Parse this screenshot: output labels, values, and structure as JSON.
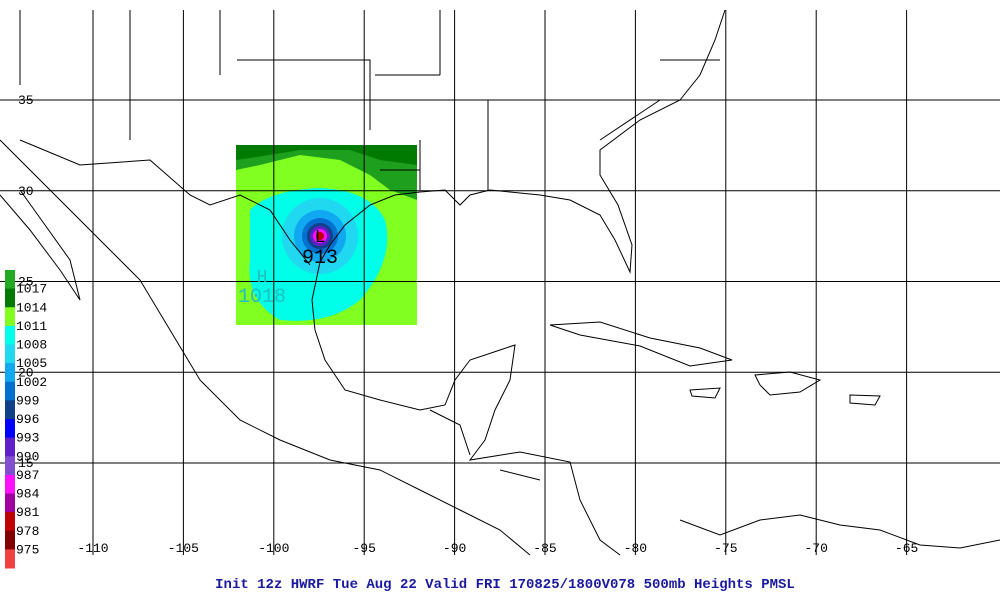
{
  "map": {
    "lon_ticks": [
      -110,
      -105,
      -100,
      -95,
      -90,
      -85,
      -80,
      -75,
      -70,
      -65
    ],
    "lat_ticks": [
      35,
      30,
      25,
      20,
      15
    ],
    "colorbar_labels": [
      "1017",
      "1014",
      "1011",
      "1008",
      "1005",
      "1002",
      "999",
      "996",
      "993",
      "990",
      "987",
      "984",
      "981",
      "978",
      "975"
    ],
    "colorbar_colors": [
      "#22aa22",
      "#007a00",
      "#80ff20",
      "#00ffe8",
      "#20d8f0",
      "#10a8f0",
      "#0070d0",
      "#104088",
      "#0000ff",
      "#6020c8",
      "#8050d0",
      "#ff10ff",
      "#a000a0",
      "#c00000",
      "#800000",
      "#f04040"
    ],
    "low_symbol": "L",
    "low_value": "913",
    "high_symbol": "H",
    "high_value": "1018"
  },
  "caption": "Init 12z HWRF Tue Aug 22 Valid FRI 170825/1800V078  500mb Heights PMSL"
}
